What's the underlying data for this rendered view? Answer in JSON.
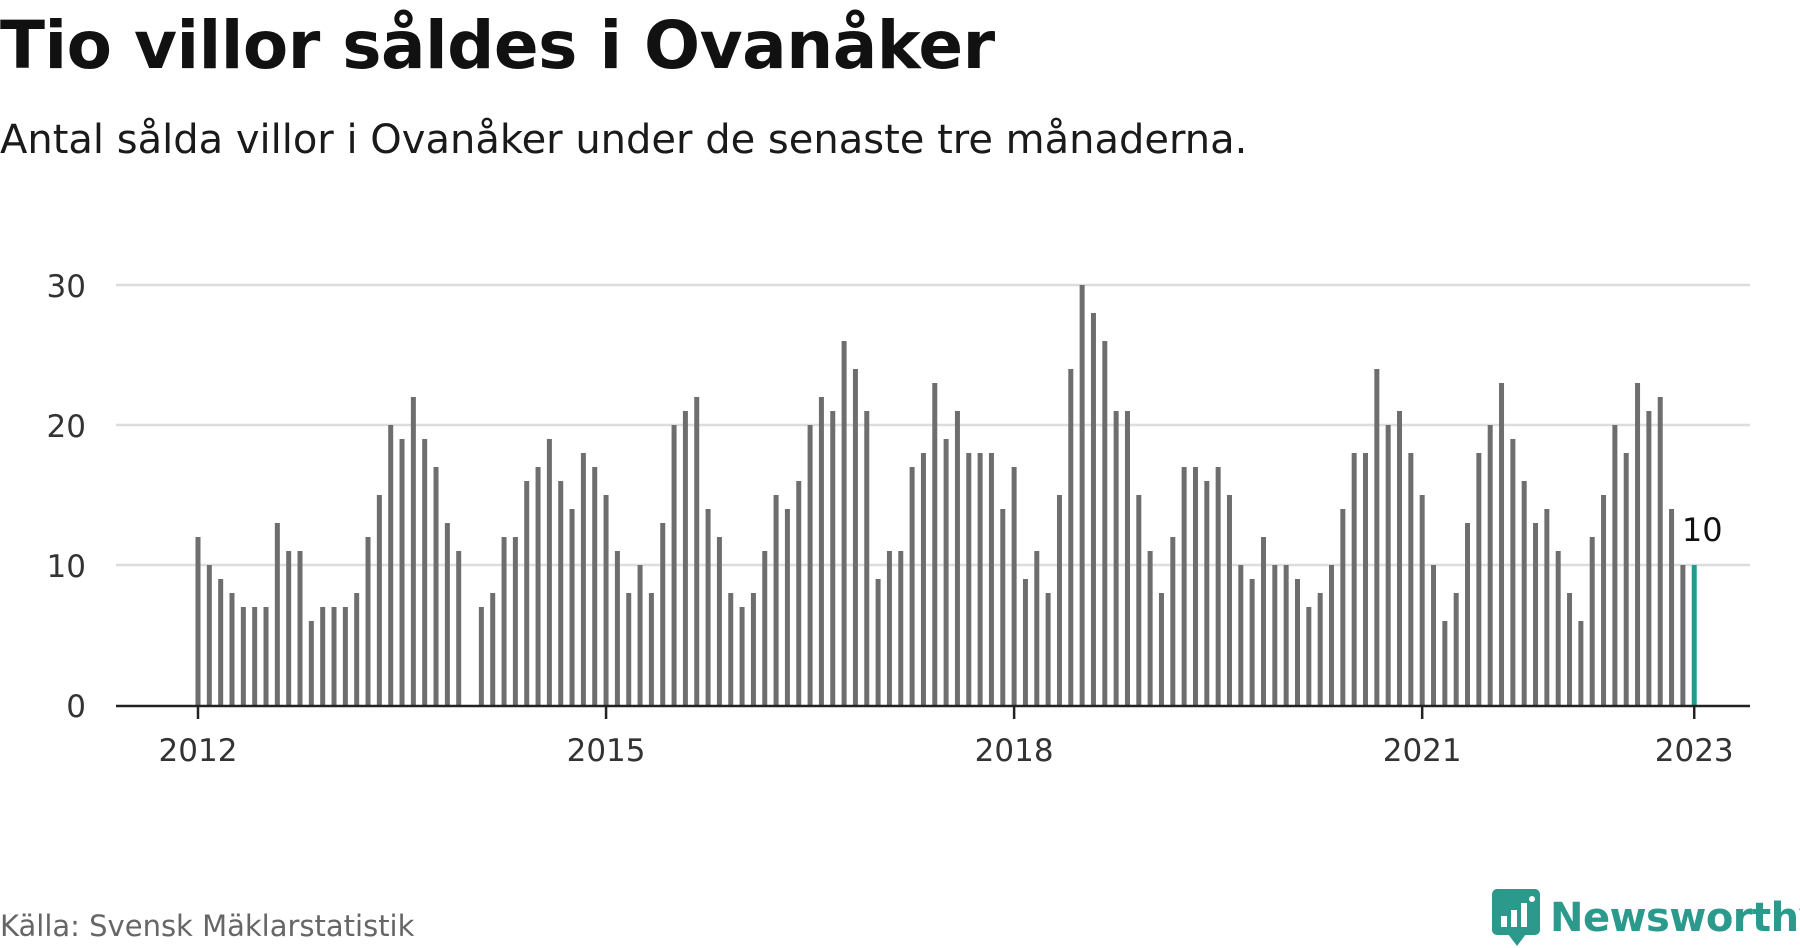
{
  "title": "Tio villor såldes i Ovanåker",
  "subtitle": "Antal sålda villor i Ovanåker under de senaste tre månaderna.",
  "source": "Källa: Svensk Mäklarstatistik",
  "brand": {
    "name": "Newsworthy",
    "icon": "newsworthy-logo-icon"
  },
  "colors": {
    "bar": "#6e6e6e",
    "highlight": "#1f9c8c",
    "grid": "#dddddd",
    "axis": "#222222",
    "brand": "#2b9a8c"
  },
  "chart_data": {
    "type": "bar",
    "x_start": "2012-01",
    "ylim": [
      0,
      30
    ],
    "yticks": [
      "0",
      "10",
      "20",
      "30"
    ],
    "xticks": [
      {
        "label": "2012",
        "x": "2012-01"
      },
      {
        "label": "2015",
        "x": "2015-01"
      },
      {
        "label": "2018",
        "x": "2018-01"
      },
      {
        "label": "2021",
        "x": "2021-01"
      },
      {
        "label": "2023",
        "x": "2023-01"
      }
    ],
    "grid": true,
    "series": [
      {
        "values": [
          12,
          10,
          9,
          8,
          7,
          7,
          7,
          13,
          11,
          11,
          6,
          7,
          7,
          7,
          8,
          12,
          15,
          20,
          19,
          22,
          19,
          17,
          13,
          11,
          null,
          7,
          8,
          12,
          12,
          16,
          17,
          19,
          16,
          14,
          18,
          17,
          15,
          11,
          8,
          10,
          8,
          13,
          20,
          21,
          22,
          14,
          12,
          8,
          7,
          8,
          11,
          15,
          14,
          16,
          20,
          22,
          21,
          26,
          24,
          21,
          9,
          11,
          11,
          17,
          18,
          23,
          19,
          21,
          18,
          18,
          18,
          14,
          17,
          9,
          11,
          8,
          15,
          24,
          30,
          28,
          26,
          21,
          21,
          15,
          11,
          8,
          12,
          17,
          17,
          16,
          17,
          15,
          10,
          9,
          12,
          10,
          10,
          9,
          7,
          8,
          10,
          14,
          18,
          18,
          24,
          20,
          21,
          18,
          15,
          10,
          6,
          8,
          13,
          18,
          20,
          23,
          19,
          16,
          13,
          14,
          11,
          8,
          6,
          12,
          15,
          20,
          18,
          23,
          21,
          22,
          14,
          10,
          10
        ]
      }
    ],
    "annotation": {
      "label": "10",
      "x": "2023-01",
      "value": 10
    }
  }
}
